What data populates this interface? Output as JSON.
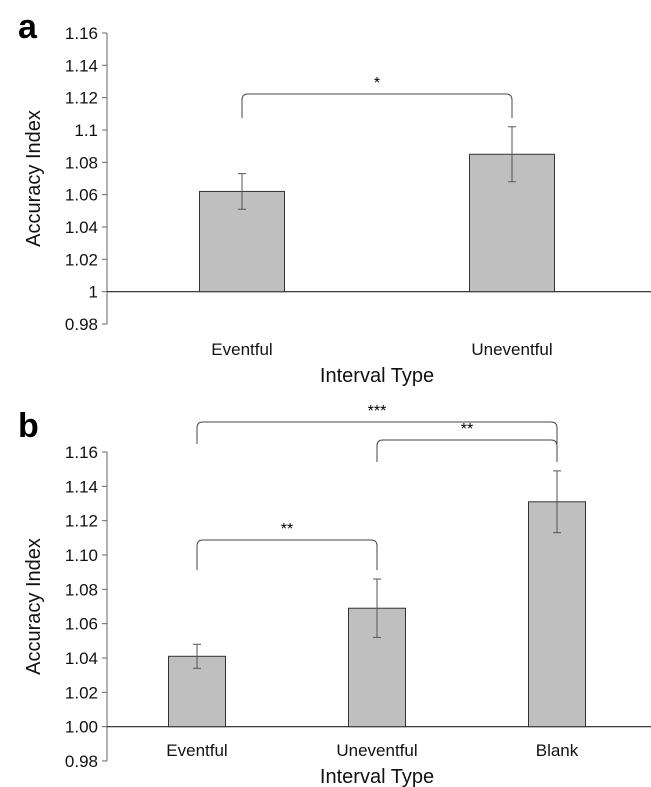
{
  "chart_data": [
    {
      "panel": "a",
      "type": "bar",
      "xlabel": "Interval Type",
      "ylabel": "Accuracy Index",
      "categories": [
        "Eventful",
        "Uneventful"
      ],
      "values": [
        1.062,
        1.085
      ],
      "errors": [
        0.011,
        0.017
      ],
      "ylim": [
        0.98,
        1.16
      ],
      "yticks": [
        0.98,
        1,
        1.02,
        1.04,
        1.06,
        1.08,
        1.1,
        1.12,
        1.14,
        1.16
      ],
      "ytick_labels": [
        "0.98",
        "1",
        "1.02",
        "1.04",
        "1.06",
        "1.08",
        "1.1",
        "1.12",
        "1.14",
        "1.16"
      ],
      "baseline": 1.0,
      "bar_color": "#bfbfbf",
      "significance": [
        {
          "from": 0,
          "to": 1,
          "label": "*"
        }
      ]
    },
    {
      "panel": "b",
      "type": "bar",
      "xlabel": "Interval Type",
      "ylabel": "Accuracy Index",
      "categories": [
        "Eventful",
        "Uneventful",
        "Blank"
      ],
      "values": [
        1.041,
        1.069,
        1.131
      ],
      "errors": [
        0.007,
        0.017,
        0.018
      ],
      "ylim": [
        0.98,
        1.16
      ],
      "yticks": [
        0.98,
        1.0,
        1.02,
        1.04,
        1.06,
        1.08,
        1.1,
        1.12,
        1.14,
        1.16
      ],
      "ytick_labels": [
        "0.98",
        "1.00",
        "1.02",
        "1.04",
        "1.06",
        "1.08",
        "1.10",
        "1.12",
        "1.14",
        "1.16"
      ],
      "baseline": 1.0,
      "bar_color": "#bfbfbf",
      "significance": [
        {
          "from": 0,
          "to": 2,
          "label": "***"
        },
        {
          "from": 1,
          "to": 2,
          "label": "**"
        },
        {
          "from": 0,
          "to": 1,
          "label": "**"
        }
      ]
    }
  ]
}
